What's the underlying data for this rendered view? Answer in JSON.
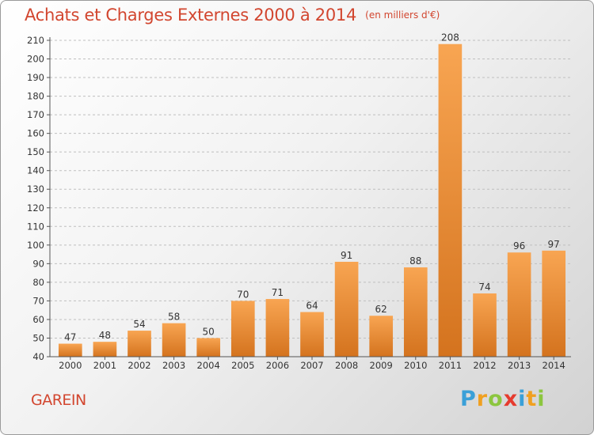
{
  "title": "Achats et Charges Externes 2000 à 2014",
  "unit": "(en milliers d'€)",
  "commune": "GAREIN",
  "logo": {
    "letters": [
      {
        "ch": "P",
        "color": "#3aa0d8"
      },
      {
        "ch": "r",
        "color": "#f0a020"
      },
      {
        "ch": "o",
        "color": "#8cc63f"
      },
      {
        "ch": "x",
        "color": "#e63b2e"
      },
      {
        "ch": "i",
        "color": "#3aa0d8"
      },
      {
        "ch": "t",
        "color": "#f0a020"
      },
      {
        "ch": "i",
        "color": "#8cc63f"
      }
    ]
  },
  "colors": {
    "bar_light": "#f8a552",
    "bar_dark": "#d4731e",
    "title": "#d2462f",
    "grid": "#bfbfbf"
  },
  "chart_data": {
    "type": "bar",
    "title": "Achats et Charges Externes 2000 à 2014",
    "unit": "(en milliers d'€)",
    "categories": [
      "2000",
      "2001",
      "2002",
      "2003",
      "2004",
      "2005",
      "2006",
      "2007",
      "2008",
      "2009",
      "2010",
      "2011",
      "2012",
      "2013",
      "2014"
    ],
    "values": [
      47,
      48,
      54,
      58,
      50,
      70,
      71,
      64,
      91,
      62,
      88,
      208,
      74,
      96,
      97
    ],
    "ylim": [
      40,
      210
    ],
    "yticks": [
      40,
      50,
      60,
      70,
      80,
      90,
      100,
      110,
      120,
      130,
      140,
      150,
      160,
      170,
      180,
      190,
      200,
      210
    ],
    "grid": true,
    "data_labels": true
  }
}
